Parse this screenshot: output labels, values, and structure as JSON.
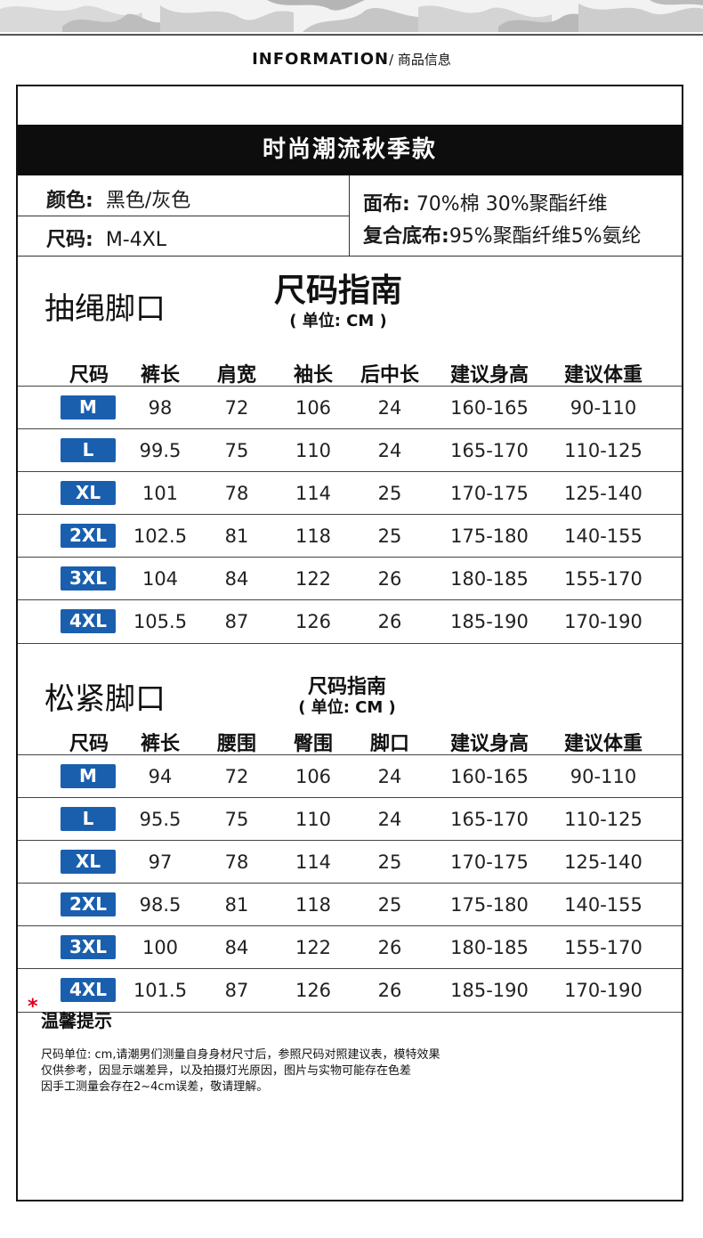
{
  "header": {
    "title_en": "INFORMATION",
    "title_cn": "/ 商品信息"
  },
  "banner": "时尚潮流秋季款",
  "specs": {
    "color_label": "颜色:",
    "color_value": "黑色/灰色",
    "size_label": "尺码:",
    "size_value": "M-4XL",
    "fabric_label": "面布:",
    "fabric_value": "70%棉 30%聚酯纤维",
    "lining_label": "复合底布:",
    "lining_value": "95%聚酯纤维5%氨纶"
  },
  "section1": {
    "title": "抽绳脚口",
    "guide_title": "尺码指南",
    "unit": "( 单位: CM )",
    "headers": [
      "尺码",
      "裤长",
      "肩宽",
      "袖长",
      "后中长",
      "建议身高",
      "建议体重"
    ],
    "rows": [
      [
        "M",
        "98",
        "72",
        "106",
        "24",
        "160-165",
        "90-110"
      ],
      [
        "L",
        "99.5",
        "75",
        "110",
        "24",
        "165-170",
        "110-125"
      ],
      [
        "XL",
        "101",
        "78",
        "114",
        "25",
        "170-175",
        "125-140"
      ],
      [
        "2XL",
        "102.5",
        "81",
        "118",
        "25",
        "175-180",
        "140-155"
      ],
      [
        "3XL",
        "104",
        "84",
        "122",
        "26",
        "180-185",
        "155-170"
      ],
      [
        "4XL",
        "105.5",
        "87",
        "126",
        "26",
        "185-190",
        "170-190"
      ]
    ]
  },
  "section2": {
    "title": "松紧脚口",
    "guide_title": "尺码指南",
    "unit": "( 单位: CM )",
    "headers": [
      "尺码",
      "裤长",
      "腰围",
      "臀围",
      "脚口",
      "建议身高",
      "建议体重"
    ],
    "rows": [
      [
        "M",
        "94",
        "72",
        "106",
        "24",
        "160-165",
        "90-110"
      ],
      [
        "L",
        "95.5",
        "75",
        "110",
        "24",
        "165-170",
        "110-125"
      ],
      [
        "XL",
        "97",
        "78",
        "114",
        "25",
        "170-175",
        "125-140"
      ],
      [
        "2XL",
        "98.5",
        "81",
        "118",
        "25",
        "175-180",
        "140-155"
      ],
      [
        "3XL",
        "100",
        "84",
        "122",
        "26",
        "180-185",
        "155-170"
      ],
      [
        "4XL",
        "101.5",
        "87",
        "126",
        "26",
        "185-190",
        "170-190"
      ]
    ]
  },
  "tips": {
    "star": "*",
    "title": "温馨提示",
    "lines": [
      "尺码单位: cm,请潮男们测量自身身材尺寸后，参照尺码对照建议表，模特效果",
      "仅供参考，因显示端差异，以及拍摄灯光原因，图片与实物可能存在色差",
      "因手工测量会存在2~4cm误差，敬请理解。"
    ]
  },
  "colors": {
    "badge": "#1a5fae",
    "banner_bg": "#0d0d0d",
    "star": "#e0001b"
  }
}
